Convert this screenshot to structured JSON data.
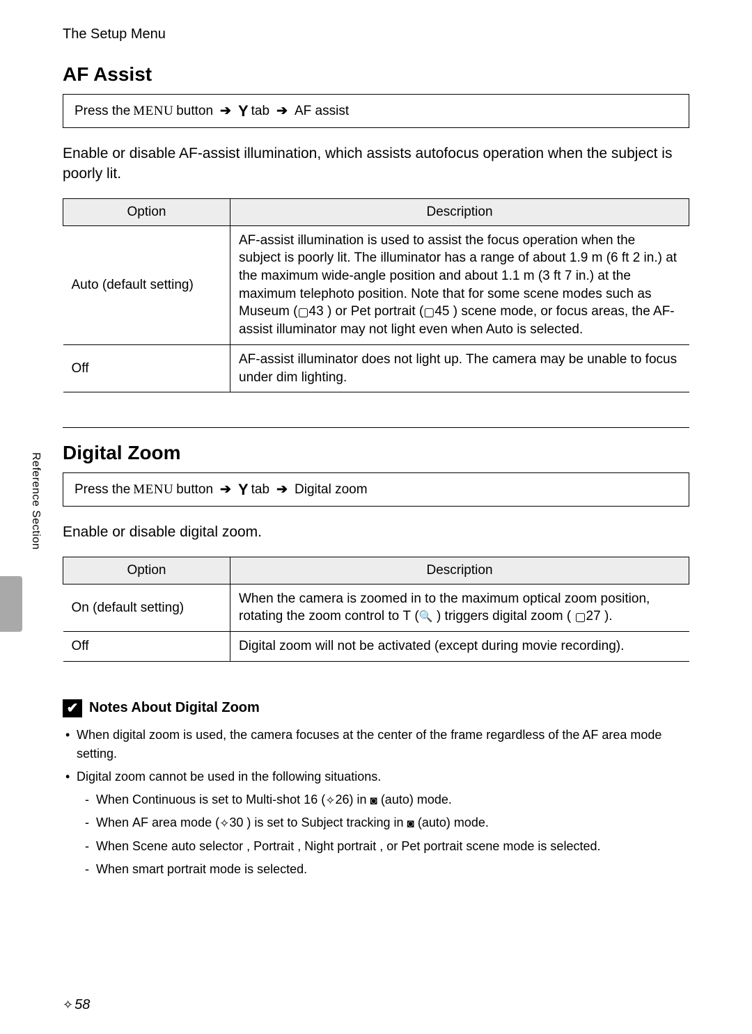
{
  "header": {
    "title": "The Setup Menu"
  },
  "side": {
    "label": "Reference Section"
  },
  "page_number": "58",
  "af_assist": {
    "title": "AF Assist",
    "nav_prefix": "Press the ",
    "nav_menu": "MENU",
    "nav_button": " button ",
    "nav_tab": " tab ",
    "nav_item": " AF assist",
    "intro": "Enable or disable AF-assist illumination, which assists autofocus operation when the subject is poorly lit.",
    "table": {
      "head_option": "Option",
      "head_desc": "Description",
      "rows": [
        {
          "option": "Auto (default setting)",
          "desc_pre": "AF-assist illumination is used to assist the focus operation when the subject is poorly lit. The illuminator has a range of about 1.9 m (6 ft 2 in.) at the maximum wide-angle position and about 1.1 m (3 ft 7 in.) at the maximum telephoto position. Note that for some scene modes such as ",
          "bold1": "Museum",
          "ref1": "43",
          "mid1": ") or ",
          "bold2": "Pet portrait",
          "ref2": "45",
          "desc_post": ") scene mode, or focus areas, the AF-assist illuminator may not light even when Auto is selected."
        },
        {
          "option": "Off",
          "desc": "AF-assist illuminator does not light up. The camera may be unable to focus under dim lighting."
        }
      ]
    }
  },
  "digital_zoom": {
    "title": "Digital Zoom",
    "nav_prefix": "Press the ",
    "nav_menu": "MENU",
    "nav_button": " button ",
    "nav_tab": " tab ",
    "nav_item": " Digital zoom",
    "intro": "Enable or disable digital zoom.",
    "table": {
      "head_option": "Option",
      "head_desc": "Description",
      "rows": [
        {
          "option": "On (default setting)",
          "desc_pre": "When the camera is zoomed in to the maximum optical zoom position, rotating the zoom control to ",
          "t_label": "T",
          "mid": ") triggers digital zoom (",
          "ref": "27",
          "post": ")."
        },
        {
          "option": "Off",
          "desc": "Digital zoom will not be activated (except during movie recording)."
        }
      ]
    }
  },
  "notes": {
    "heading": "Notes About Digital Zoom",
    "items": {
      "n1": "When digital zoom is used, the camera focuses at the center of the frame regardless of the AF area mode setting.",
      "n2": "Digital zoom cannot be used in the following situations.",
      "s1_pre": "When ",
      "s1_b1": "Continuous",
      "s1_mid": " is set to ",
      "s1_b2": "Multi-shot 16",
      "s1_ref": "26",
      "s1_post": " (auto) mode.",
      "s2_pre": "When ",
      "s2_b1": "AF area mode",
      "s2_ref": "30",
      "s2_mid": ") is set to ",
      "s2_b2": "Subject tracking",
      "s2_in": " in ",
      "s2_post": " (auto) mode.",
      "s3_pre": "When ",
      "s3_b1": "Scene auto selector",
      "s3_c": ", ",
      "s3_b2": "Portrait",
      "s3_b3": "Night portrait",
      "s3_or": ", or ",
      "s3_b4": "Pet portrait",
      "s3_post": " scene mode is selected.",
      "s4": "When smart portrait mode is selected."
    }
  }
}
